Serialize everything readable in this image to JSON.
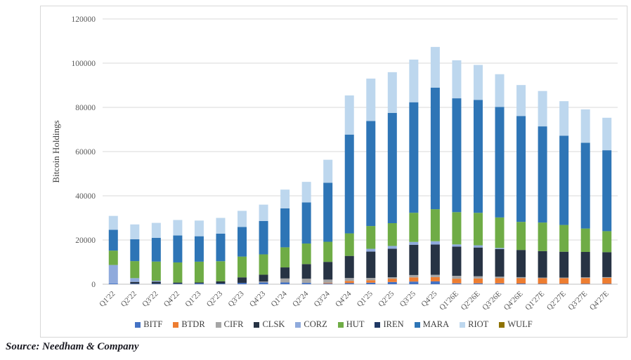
{
  "page": {
    "source_note": "Source: Needham & Company"
  },
  "chart_data": {
    "type": "bar",
    "stacked": true,
    "title": "",
    "xlabel": "",
    "ylabel": "Bitcoin Holdings",
    "ylim": [
      0,
      120000
    ],
    "ytick_step": 20000,
    "grid": true,
    "legend_position": "bottom",
    "categories": [
      "Q1'22",
      "Q2'22",
      "Q3'22",
      "Q4'22",
      "Q1'23",
      "Q2'23",
      "Q3'23",
      "Q4'23",
      "Q1'24",
      "Q2'24",
      "Q3'24",
      "Q4'24",
      "Q1'25",
      "Q2'25",
      "Q3'25",
      "Q4'25",
      "Q1'26E",
      "Q2'26E",
      "Q3'26E",
      "Q4'26E",
      "Q1'27E",
      "Q2'27E",
      "Q3'27E",
      "Q4'27E"
    ],
    "series": [
      {
        "name": "BITF",
        "color": "#4472c4",
        "values": [
          300,
          250,
          250,
          250,
          400,
          300,
          600,
          800,
          800,
          600,
          300,
          500,
          700,
          1000,
          1200,
          1300,
          400,
          400,
          400,
          300,
          200,
          200,
          200,
          200
        ]
      },
      {
        "name": "BTDR",
        "color": "#ed7d31",
        "values": [
          0,
          0,
          0,
          0,
          0,
          0,
          0,
          0,
          0,
          0,
          300,
          1000,
          1100,
          1500,
          1900,
          1900,
          2100,
          2200,
          2300,
          2400,
          2500,
          2500,
          2600,
          2700
        ]
      },
      {
        "name": "CIFR",
        "color": "#a5a5a5",
        "values": [
          0,
          0,
          0,
          0,
          0,
          0,
          0,
          400,
          1800,
          1900,
          1500,
          1300,
          1050,
          650,
          1050,
          1050,
          1300,
          1000,
          700,
          500,
          300,
          300,
          300,
          300
        ]
      },
      {
        "name": "CLSK",
        "color": "#273344",
        "values": [
          0,
          800,
          900,
          500,
          400,
          1000,
          2500,
          3100,
          5000,
          6600,
          8000,
          10000,
          11900,
          12900,
          13700,
          13700,
          13200,
          13000,
          12500,
          12300,
          12000,
          11700,
          11500,
          11300
        ]
      },
      {
        "name": "CORZ",
        "color": "#8faadc",
        "values": [
          8400,
          1700,
          400,
          0,
          0,
          0,
          0,
          0,
          0,
          0,
          0,
          0,
          1270,
          1270,
          1270,
          1490,
          1000,
          1000,
          500,
          0,
          0,
          0,
          0,
          0
        ]
      },
      {
        "name": "HUT",
        "color": "#6fac46",
        "values": [
          6500,
          7700,
          8700,
          9100,
          9400,
          9100,
          9400,
          9200,
          9100,
          9300,
          9100,
          10200,
          10300,
          10300,
          13200,
          14500,
          14600,
          14700,
          13800,
          12700,
          12900,
          12100,
          10600,
          9500
        ]
      },
      {
        "name": "IREN",
        "color": "#1f3864",
        "values": [
          0,
          0,
          0,
          0,
          0,
          0,
          0,
          0,
          0,
          0,
          0,
          0,
          0,
          0,
          0,
          0,
          0,
          0,
          0,
          0,
          0,
          0,
          0,
          0
        ]
      },
      {
        "name": "MARA",
        "color": "#2e75b6",
        "values": [
          9400,
          9900,
          10700,
          12200,
          11500,
          12500,
          13400,
          15100,
          17600,
          18600,
          26700,
          44700,
          47500,
          49900,
          50000,
          55000,
          51500,
          51100,
          50000,
          47900,
          43500,
          40400,
          38800,
          36600
        ]
      },
      {
        "name": "RIOT",
        "color": "#bdd7ee",
        "values": [
          6300,
          6700,
          6800,
          7000,
          7100,
          7100,
          7300,
          7400,
          8500,
          9300,
          10400,
          17700,
          19200,
          18400,
          19300,
          18400,
          17200,
          15800,
          14800,
          14000,
          16000,
          15600,
          15100,
          14700
        ]
      },
      {
        "name": "WULF",
        "color": "#8e7200",
        "values": [
          0,
          0,
          0,
          0,
          0,
          0,
          0,
          0,
          0,
          0,
          0,
          0,
          0,
          0,
          0,
          0,
          0,
          0,
          0,
          0,
          0,
          0,
          0,
          0
        ]
      }
    ]
  }
}
